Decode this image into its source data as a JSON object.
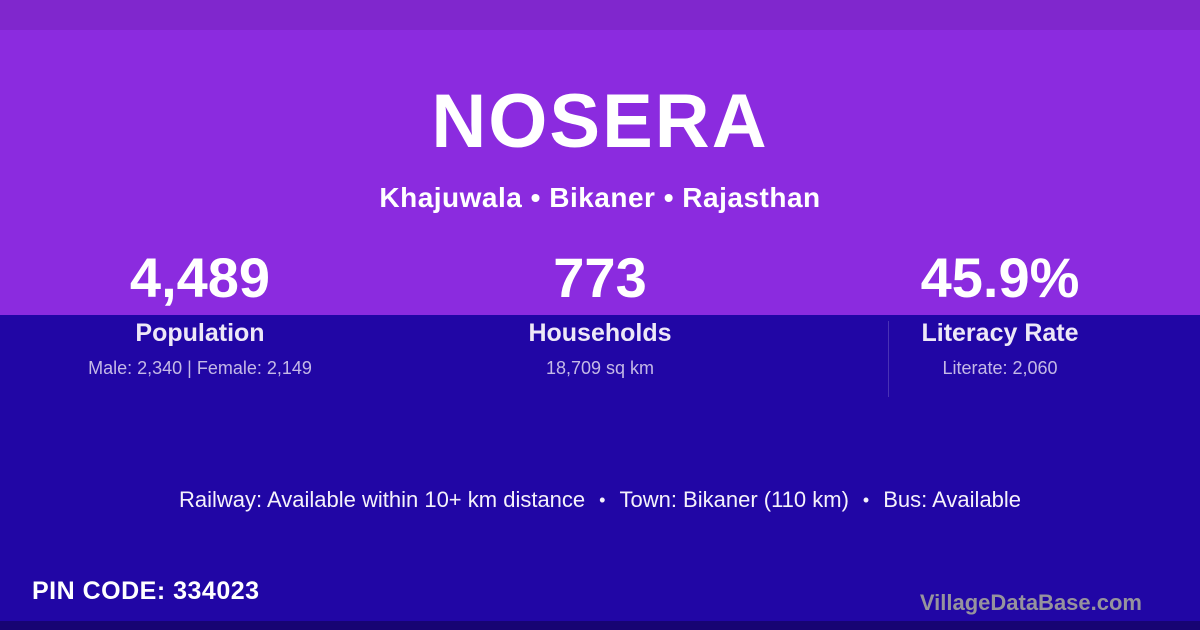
{
  "header": {
    "title": "NOSERA",
    "subtitle": "Khajuwala • Bikaner • Rajasthan"
  },
  "stats": [
    {
      "value": "4,489",
      "label": "Population",
      "detail": "Male: 2,340 | Female: 2,149"
    },
    {
      "value": "773",
      "label": "Households",
      "detail": "18,709 sq km"
    },
    {
      "value": "45.9%",
      "label": "Literacy Rate",
      "detail": "Literate: 2,060"
    }
  ],
  "transport": {
    "segments": [
      "Railway: Available within 10+ km distance",
      "Town: Bikaner (110 km)",
      "Bus: Available"
    ],
    "separator": "•"
  },
  "footer": {
    "pin_text": "PIN CODE: 334023",
    "watermark": "VillageDataBase.com"
  },
  "colors": {
    "top_background": "#8B2BDF",
    "bottom_background": "#2106A5",
    "text_primary": "#FFFFFF",
    "text_muted": "#C4B9E6",
    "watermark_gray": "#96939D"
  }
}
